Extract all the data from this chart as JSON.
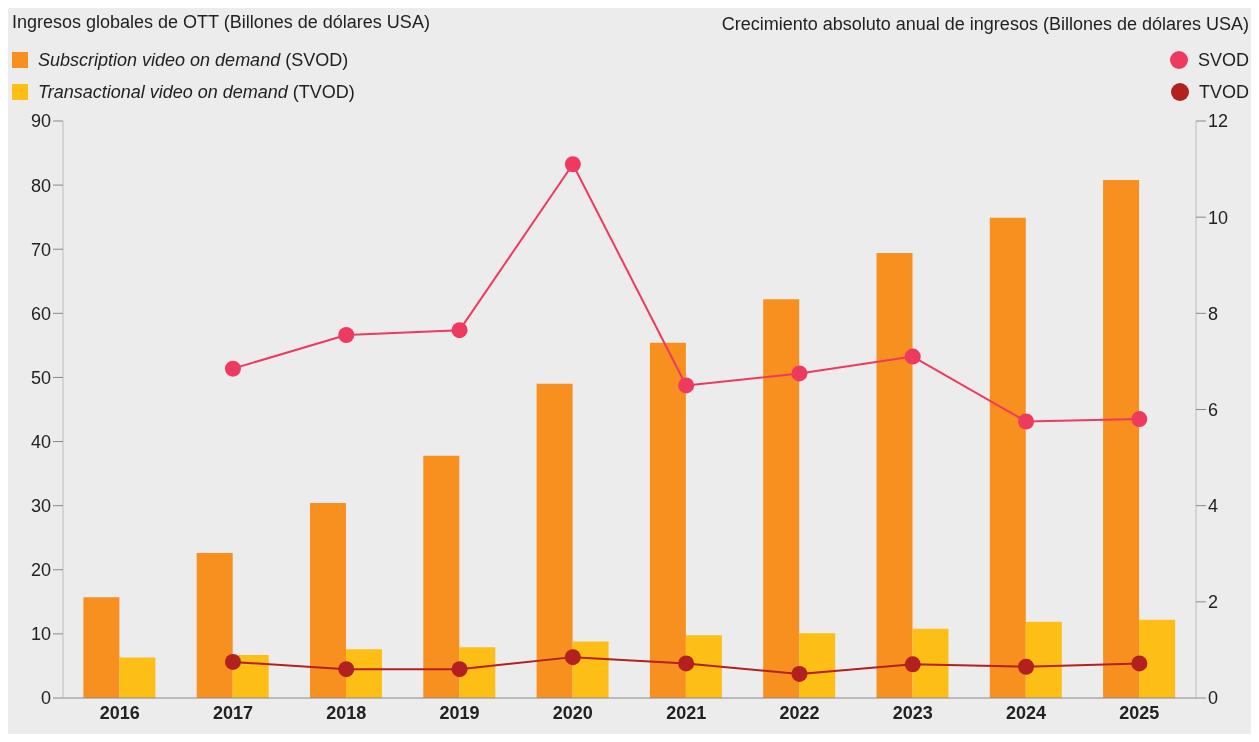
{
  "chart_data": {
    "type": "bar",
    "ylabel": "Ingresos globales de OTT (Billones de dólares USA)",
    "y2label": "Crecimiento absoluto anual de ingresos (Billones de dólares USA)",
    "categories": [
      "2016",
      "2017",
      "2018",
      "2019",
      "2020",
      "2021",
      "2022",
      "2023",
      "2024",
      "2025"
    ],
    "series": [
      {
        "name": "Subscription video on demand (SVOD)",
        "color": "#f7901e",
        "values": [
          15.7,
          22.6,
          30.4,
          37.8,
          49.0,
          55.4,
          62.2,
          69.4,
          74.9,
          80.8
        ]
      },
      {
        "name": "Transactional video on demand (TVOD)",
        "color": "#fdbe16",
        "values": [
          6.3,
          6.7,
          7.6,
          7.9,
          8.8,
          9.8,
          10.1,
          10.8,
          11.9,
          12.2
        ]
      },
      {
        "name": "SVOD",
        "type": "line",
        "axis": "y2",
        "color": "#ee3a5f",
        "values": [
          null,
          6.85,
          7.55,
          7.65,
          11.1,
          6.5,
          6.75,
          7.1,
          5.75,
          5.8
        ]
      },
      {
        "name": "TVOD",
        "type": "line",
        "axis": "y2",
        "color": "#b2201f",
        "values": [
          null,
          0.75,
          0.6,
          0.6,
          0.85,
          0.72,
          0.5,
          0.7,
          0.65,
          0.72
        ]
      }
    ],
    "ylim": [
      0,
      90
    ],
    "yticks": [
      0,
      10,
      20,
      30,
      40,
      50,
      60,
      70,
      80,
      90
    ],
    "y2lim": [
      0,
      12
    ],
    "y2ticks": [
      0,
      2,
      4,
      6,
      8,
      10,
      12
    ],
    "grid": false,
    "legend": "top",
    "marker": "circle",
    "line_style": "solid"
  }
}
